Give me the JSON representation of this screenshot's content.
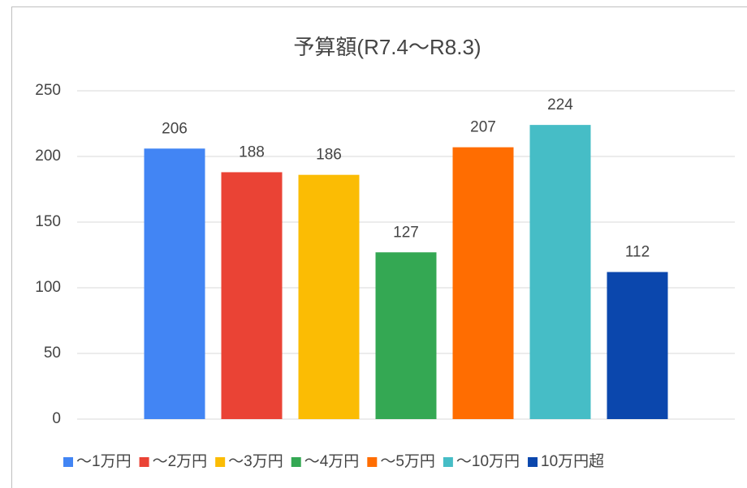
{
  "chart_data": {
    "type": "bar",
    "title": "予算額(R7.4～R8.3)",
    "categories": [
      "～1万円",
      "～2万円",
      "～3万円",
      "～4万円",
      "～5万円",
      "～10万円",
      "10万円超"
    ],
    "values": [
      206,
      188,
      186,
      127,
      207,
      224,
      112
    ],
    "colors": [
      "#4285f4",
      "#ea4335",
      "#fbbc04",
      "#34a853",
      "#ff6d01",
      "#46bdc6",
      "#0b47ad"
    ],
    "ylim": [
      0,
      250
    ],
    "yticks": [
      0,
      50,
      100,
      150,
      200,
      250
    ],
    "grid": true,
    "legend": "bottom"
  }
}
